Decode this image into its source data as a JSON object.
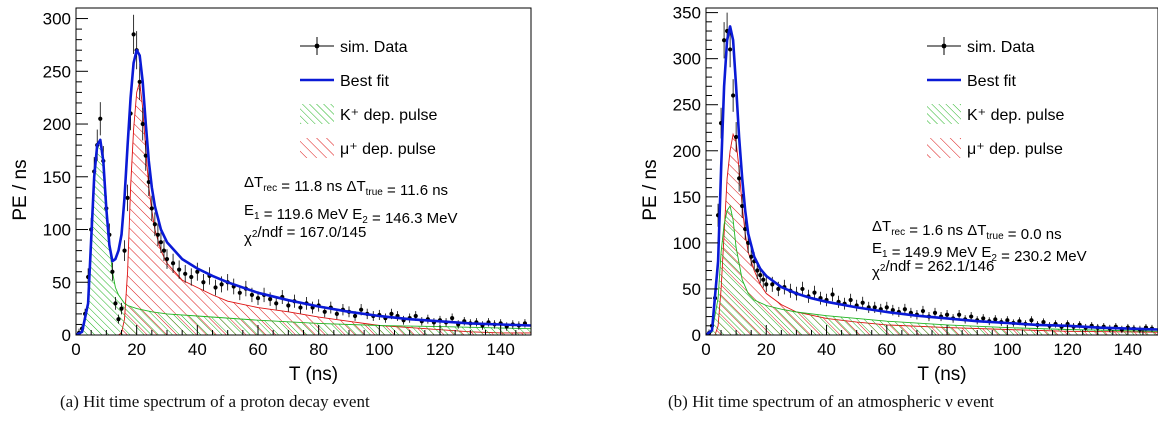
{
  "captions": [
    "(a)  Hit time spectrum of a proton decay event",
    "(b)  Hit time spectrum of an atmospheric ν event"
  ],
  "colors": {
    "data": "#000000",
    "fit": "#0a1ad6",
    "k_pulse": "#22b422",
    "mu_pulse": "#dd1111"
  },
  "chart_data": [
    {
      "type": "line",
      "xlabel": "T (ns)",
      "ylabel": "PE / ns",
      "xlim": [
        0,
        150
      ],
      "ylim": [
        0,
        310
      ],
      "xticks": [
        0,
        20,
        40,
        60,
        80,
        100,
        120,
        140
      ],
      "yticks": [
        0,
        50,
        100,
        150,
        200,
        250,
        300
      ],
      "grid": false,
      "legend_position": "top-right",
      "legend": [
        "sim. Data",
        "Best fit",
        "K⁺ dep. pulse",
        "μ⁺ dep. pulse"
      ],
      "annotations": [
        "ΔT_rec =  11.8 ns  ΔT_true =  11.6 ns",
        "E_1 = 119.6 MeV   E_2 = 146.3 MeV",
        "χ²/ndf  = 167.0/145"
      ],
      "series": [
        {
          "name": "sim. Data",
          "kind": "points",
          "x": [
            1,
            2,
            3,
            4,
            5,
            6,
            7,
            8,
            9,
            10,
            11,
            12,
            13,
            14,
            15,
            16,
            17,
            18,
            19,
            20,
            21,
            22,
            23,
            24,
            25,
            26,
            27,
            28,
            29,
            30,
            32,
            34,
            36,
            38,
            40,
            42,
            44,
            46,
            48,
            50,
            52,
            54,
            56,
            58,
            60,
            62,
            64,
            66,
            68,
            70,
            72,
            74,
            76,
            78,
            80,
            82,
            84,
            86,
            88,
            90,
            92,
            94,
            96,
            98,
            100,
            102,
            104,
            106,
            108,
            110,
            112,
            114,
            116,
            118,
            120,
            122,
            124,
            126,
            128,
            130,
            132,
            134,
            136,
            138,
            140,
            142,
            144,
            146,
            148
          ],
          "y": [
            2,
            6,
            20,
            55,
            100,
            155,
            180,
            205,
            165,
            120,
            95,
            60,
            30,
            15,
            25,
            80,
            130,
            210,
            285,
            270,
            240,
            200,
            170,
            145,
            120,
            105,
            95,
            88,
            80,
            72,
            68,
            62,
            58,
            55,
            60,
            50,
            56,
            45,
            48,
            50,
            46,
            40,
            44,
            38,
            35,
            38,
            34,
            30,
            36,
            28,
            32,
            26,
            30,
            26,
            28,
            22,
            26,
            20,
            24,
            22,
            18,
            24,
            20,
            18,
            19,
            16,
            20,
            18,
            14,
            16,
            18,
            13,
            15,
            12,
            14,
            12,
            16,
            10,
            13,
            11,
            12,
            9,
            12,
            10,
            11,
            8,
            10,
            9,
            11
          ]
        },
        {
          "name": "Best fit",
          "kind": "line",
          "x": [
            0,
            2,
            4,
            6,
            7,
            8,
            9,
            10,
            11,
            12,
            13,
            14,
            15,
            16,
            17,
            18,
            19,
            20,
            21,
            22,
            23,
            24,
            25,
            26,
            28,
            30,
            35,
            40,
            45,
            50,
            60,
            70,
            80,
            90,
            100,
            110,
            120,
            130,
            140,
            150
          ],
          "y": [
            0,
            3,
            30,
            150,
            180,
            185,
            165,
            120,
            85,
            70,
            72,
            80,
            95,
            130,
            180,
            225,
            258,
            270,
            265,
            240,
            200,
            165,
            140,
            122,
            100,
            88,
            72,
            63,
            56,
            50,
            40,
            33,
            27,
            22,
            18,
            15,
            13,
            11,
            10,
            9
          ]
        },
        {
          "name": "K⁺ dep. pulse",
          "kind": "area",
          "x": [
            0,
            2,
            4,
            6,
            7,
            8,
            9,
            10,
            11,
            12,
            13,
            14,
            15,
            16,
            17,
            18,
            20,
            25,
            30,
            40,
            60,
            80,
            100,
            120,
            150
          ],
          "y": [
            0,
            3,
            30,
            150,
            180,
            185,
            165,
            120,
            85,
            60,
            45,
            38,
            34,
            30,
            28,
            27,
            25,
            22,
            20,
            18,
            14,
            11,
            9,
            8,
            6
          ]
        },
        {
          "name": "μ⁺ dep. pulse",
          "kind": "area",
          "x": [
            0,
            14,
            15,
            16,
            17,
            18,
            19,
            20,
            21,
            22,
            23,
            24,
            25,
            26,
            28,
            30,
            35,
            40,
            45,
            50,
            60,
            70,
            80,
            90,
            100,
            110,
            120,
            130,
            140,
            150
          ],
          "y": [
            0,
            0,
            2,
            15,
            60,
            140,
            195,
            230,
            240,
            215,
            175,
            140,
            118,
            100,
            80,
            68,
            52,
            45,
            38,
            32,
            26,
            22,
            17,
            13,
            9,
            7,
            5,
            3,
            2,
            2
          ]
        }
      ]
    },
    {
      "type": "line",
      "xlabel": "T (ns)",
      "ylabel": "PE / ns",
      "xlim": [
        0,
        150
      ],
      "ylim": [
        0,
        355
      ],
      "xticks": [
        0,
        20,
        40,
        60,
        80,
        100,
        120,
        140
      ],
      "yticks": [
        0,
        50,
        100,
        150,
        200,
        250,
        300,
        350
      ],
      "grid": false,
      "legend_position": "top-right",
      "legend": [
        "sim. Data",
        "Best fit",
        "K⁺ dep. pulse",
        "μ⁺ dep. pulse"
      ],
      "annotations": [
        "ΔT_rec =   1.6 ns  ΔT_true =   0.0 ns",
        "E_1 = 149.9 MeV   E_2 = 230.2 MeV",
        "χ²/ndf  = 262.1/146"
      ],
      "series": [
        {
          "name": "sim. Data",
          "kind": "points",
          "x": [
            1,
            2,
            3,
            4,
            5,
            6,
            7,
            8,
            9,
            10,
            11,
            12,
            13,
            14,
            15,
            16,
            17,
            18,
            19,
            20,
            22,
            24,
            26,
            28,
            30,
            32,
            34,
            36,
            38,
            40,
            42,
            44,
            46,
            48,
            50,
            52,
            54,
            56,
            58,
            60,
            62,
            64,
            66,
            68,
            70,
            72,
            74,
            76,
            78,
            80,
            82,
            84,
            86,
            88,
            90,
            92,
            94,
            96,
            98,
            100,
            102,
            104,
            106,
            108,
            110,
            112,
            114,
            116,
            118,
            120,
            122,
            124,
            126,
            128,
            130,
            132,
            134,
            136,
            138,
            140,
            142,
            144,
            146,
            148
          ],
          "y": [
            2,
            10,
            40,
            130,
            230,
            320,
            330,
            310,
            260,
            215,
            170,
            140,
            115,
            100,
            85,
            80,
            70,
            65,
            60,
            55,
            55,
            50,
            52,
            48,
            45,
            50,
            42,
            46,
            40,
            38,
            44,
            36,
            34,
            38,
            32,
            35,
            30,
            30,
            28,
            30,
            27,
            25,
            28,
            24,
            22,
            26,
            20,
            24,
            20,
            22,
            18,
            22,
            17,
            20,
            16,
            18,
            15,
            17,
            14,
            16,
            13,
            15,
            12,
            16,
            11,
            14,
            10,
            12,
            9,
            12,
            9,
            11,
            8,
            10,
            8,
            9,
            7,
            9,
            6,
            8,
            7,
            6,
            8,
            7
          ]
        },
        {
          "name": "Best fit",
          "kind": "line",
          "x": [
            0,
            2,
            4,
            5,
            6,
            7,
            8,
            9,
            10,
            11,
            12,
            13,
            14,
            16,
            18,
            20,
            25,
            30,
            35,
            40,
            50,
            60,
            70,
            80,
            90,
            100,
            110,
            120,
            130,
            140,
            150
          ],
          "y": [
            0,
            5,
            80,
            180,
            270,
            320,
            335,
            320,
            270,
            215,
            170,
            135,
            110,
            85,
            72,
            64,
            52,
            45,
            40,
            36,
            30,
            25,
            21,
            18,
            15,
            13,
            11,
            10,
            8,
            7,
            6
          ]
        },
        {
          "name": "K⁺ dep. pulse",
          "kind": "area",
          "x": [
            0,
            2,
            4,
            5,
            6,
            7,
            8,
            9,
            10,
            12,
            14,
            16,
            20,
            25,
            30,
            40,
            50,
            60,
            80,
            100,
            120,
            150
          ],
          "y": [
            0,
            3,
            40,
            90,
            120,
            135,
            140,
            125,
            95,
            60,
            45,
            38,
            32,
            28,
            25,
            21,
            18,
            15,
            11,
            8,
            6,
            4
          ]
        },
        {
          "name": "μ⁺ dep. pulse",
          "kind": "area",
          "x": [
            0,
            3,
            4,
            5,
            6,
            7,
            8,
            9,
            10,
            11,
            12,
            13,
            14,
            16,
            18,
            20,
            25,
            30,
            40,
            50,
            60,
            80,
            100,
            120,
            150
          ],
          "y": [
            0,
            0,
            10,
            50,
            110,
            170,
            200,
            218,
            210,
            180,
            140,
            110,
            90,
            70,
            55,
            45,
            33,
            25,
            18,
            14,
            11,
            8,
            6,
            4,
            3
          ]
        }
      ]
    }
  ]
}
